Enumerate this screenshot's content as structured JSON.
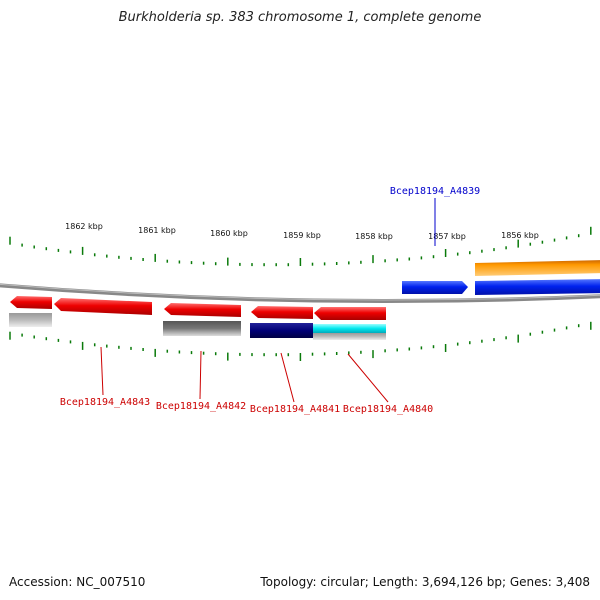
{
  "title": "Burkholderia sp. 383 chromosome 1, complete genome",
  "accession_text": "Accession: NC_007510",
  "stats_text": "Topology: circular; Length: 3,694,126 bp; Genes: 3,408",
  "colors": {
    "forward_label": "#0000cc",
    "reverse_label": "#cc0000",
    "tick": "#0a7a0a",
    "backbone": "#888888",
    "red": "#ee0000",
    "blue": "#0022ee",
    "orange": "#ff8800",
    "navy": "#000077",
    "cyan": "#00e8ee",
    "gray": "#666666",
    "lightgray": "#bbbbbb"
  },
  "scale": {
    "labels": [
      "1862 kbp",
      "1861 kbp",
      "1860 kbp",
      "1859 kbp",
      "1858 kbp",
      "1857 kbp",
      "1856 kbp"
    ]
  },
  "gene_labels": [
    {
      "id": "upper",
      "text": "Bcep18194_A4839",
      "strand": "forward"
    },
    {
      "id": "a4843",
      "text": "Bcep18194_A4843",
      "strand": "reverse"
    },
    {
      "id": "a4842",
      "text": "Bcep18194_A4842",
      "strand": "reverse"
    },
    {
      "id": "a4841",
      "text": "Bcep18194_A4841",
      "strand": "reverse"
    },
    {
      "id": "a4840",
      "text": "Bcep18194_A4840",
      "strand": "reverse"
    }
  ]
}
